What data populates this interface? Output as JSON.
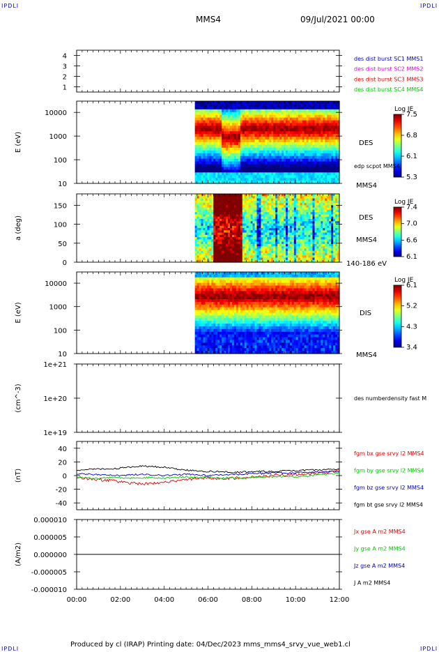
{
  "header": {
    "corner_left": "IPDLI",
    "corner_right": "IPDLI",
    "corner_bl": "IPDLI",
    "corner_br": "IPDLI",
    "spacecraft": "MMS4",
    "datetime": "09/Jul/2021 00:00"
  },
  "footer": {
    "text": "Produced by cl (IRAP)   Printing date: 04/Dec/2023   mms_mms4_srvy_vue_web1.cl"
  },
  "colors": {
    "blue": "#0000c8",
    "magenta": "#e000e0",
    "red": "#e00000",
    "green": "#00c800",
    "black": "#000000"
  },
  "chart_data": [
    {
      "id": "dist-burst",
      "type": "table",
      "ylabel": "",
      "yticks": [
        "1",
        "2",
        "3",
        "4"
      ],
      "ylim": [
        0.5,
        4.5
      ],
      "legend": [
        {
          "text": "des dist burst SC1 MMS1",
          "color": "blue"
        },
        {
          "text": "des dist burst SC2 MMS2",
          "color": "magenta"
        },
        {
          "text": "des dist burst SC3 MMS3",
          "color": "red"
        },
        {
          "text": "des dist burst SC4 MMS4",
          "color": "green"
        }
      ]
    },
    {
      "id": "des-energy",
      "type": "heatmap",
      "ylabel": "E (eV)",
      "yticks": [
        "10",
        "100",
        "1000",
        "10000"
      ],
      "ylog": true,
      "ylim": [
        10,
        30000
      ],
      "data_start_hour": 5.4,
      "overlay_label": "edp scpot MMS4",
      "side_labels": [
        "DES",
        "MMS4"
      ],
      "colorbar": {
        "title": "Log JE",
        "ticks": [
          "7.5",
          "6.8",
          "6.1",
          "5.3"
        ],
        "range": [
          5.3,
          7.5
        ]
      }
    },
    {
      "id": "des-pitch",
      "type": "heatmap",
      "ylabel": "a (deg)",
      "yticks": [
        "0",
        "50",
        "100",
        "150"
      ],
      "ylim": [
        0,
        180
      ],
      "data_start_hour": 5.4,
      "side_labels": [
        "DES",
        "MMS4",
        "140-186 eV"
      ],
      "colorbar": {
        "title": "Log JE",
        "ticks": [
          "7.4",
          "7.0",
          "6.6",
          "6.1"
        ],
        "range": [
          6.1,
          7.4
        ]
      }
    },
    {
      "id": "dis-energy",
      "type": "heatmap",
      "ylabel": "E (eV)",
      "yticks": [
        "10",
        "100",
        "1000",
        "10000"
      ],
      "ylog": true,
      "ylim": [
        10,
        30000
      ],
      "data_start_hour": 5.4,
      "side_labels": [
        "DIS",
        "MMS4"
      ],
      "colorbar": {
        "title": "Log JE",
        "ticks": [
          "6.1",
          "5.2",
          "4.3",
          "3.4"
        ],
        "range": [
          3.4,
          6.1
        ]
      }
    },
    {
      "id": "density",
      "type": "line",
      "ylabel": "(cm^-3)",
      "yticks": [
        "1e+19",
        "1e+20",
        "1e+21"
      ],
      "ylog": true,
      "ylim": [
        1e+19,
        1e+21
      ],
      "legend": [
        {
          "text": "des numberdensity fast M",
          "color": "black"
        }
      ]
    },
    {
      "id": "fgm",
      "type": "line",
      "ylabel": "(nT)",
      "yticks": [
        "-40",
        "-20",
        "0",
        "20",
        "40"
      ],
      "ylim": [
        -50,
        50
      ],
      "legend": [
        {
          "text": "fgm bx gse srvy l2 MMS4",
          "color": "red"
        },
        {
          "text": "fgm by gse srvy l2 MMS4",
          "color": "green"
        },
        {
          "text": "fgm bz gse srvy l2 MMS4",
          "color": "blue"
        },
        {
          "text": "fgm bt gse srvy l2 MMS4",
          "color": "black"
        }
      ],
      "x": [
        0,
        0.5,
        1,
        1.5,
        2,
        2.5,
        3,
        3.5,
        4,
        4.5,
        5,
        5.5,
        6,
        6.5,
        7,
        7.5,
        8,
        8.5,
        9,
        9.5,
        10,
        10.5,
        11,
        11.5,
        12
      ],
      "series": [
        {
          "name": "fgm bx gse srvy l2 MMS4",
          "color": "red",
          "values": [
            -3,
            -5,
            -6,
            -7,
            -9,
            -11,
            -12,
            -11,
            -10,
            -8,
            -6,
            -4,
            -3,
            -5,
            -4,
            -3,
            -2,
            -1,
            0,
            1,
            2,
            2,
            3,
            5,
            7
          ]
        },
        {
          "name": "fgm by gse srvy l2 MMS4",
          "color": "green",
          "values": [
            -2,
            -4,
            -4,
            -3,
            -3,
            -4,
            -3,
            -3,
            -4,
            -3,
            -2,
            -3,
            -2,
            -4,
            -3,
            -4,
            -3,
            -2,
            -2,
            -1,
            -2,
            -1,
            1,
            2,
            4
          ]
        },
        {
          "name": "fgm bz gse srvy l2 MMS4",
          "color": "blue",
          "values": [
            3,
            2,
            1,
            1,
            0,
            1,
            2,
            1,
            0,
            1,
            2,
            1,
            0,
            1,
            2,
            2,
            3,
            3,
            4,
            4,
            4,
            5,
            5,
            6,
            6
          ]
        },
        {
          "name": "fgm bt gse srvy l2 MMS4",
          "color": "black",
          "values": [
            8,
            9,
            10,
            9,
            11,
            13,
            14,
            13,
            12,
            10,
            8,
            7,
            6,
            6,
            5,
            5,
            6,
            6,
            6,
            7,
            7,
            8,
            8,
            9,
            10
          ]
        }
      ]
    },
    {
      "id": "current",
      "type": "line",
      "ylabel": "(A/m2)",
      "yticks": [
        "-0.000010",
        "-0.000005",
        "0.000000",
        "0.000005",
        "0.000010"
      ],
      "ylim": [
        -1e-05,
        1e-05
      ],
      "legend": [
        {
          "text": "Jx gse A m2 MMS4",
          "color": "red"
        },
        {
          "text": "Jy gse A m2 MMS4",
          "color": "green"
        },
        {
          "text": "Jz gse A m2 MMS4",
          "color": "blue"
        },
        {
          "text": "J A m2 MMS4",
          "color": "black"
        }
      ],
      "x": [
        0,
        12
      ],
      "series": [
        {
          "name": "J A m2 MMS4",
          "color": "black",
          "values": [
            0,
            0
          ]
        }
      ]
    }
  ],
  "x_axis": {
    "ticks": [
      "00:00",
      "02:00",
      "04:00",
      "06:00",
      "08:00",
      "10:00",
      "12:00"
    ],
    "xlim_hours": [
      0,
      12
    ]
  }
}
